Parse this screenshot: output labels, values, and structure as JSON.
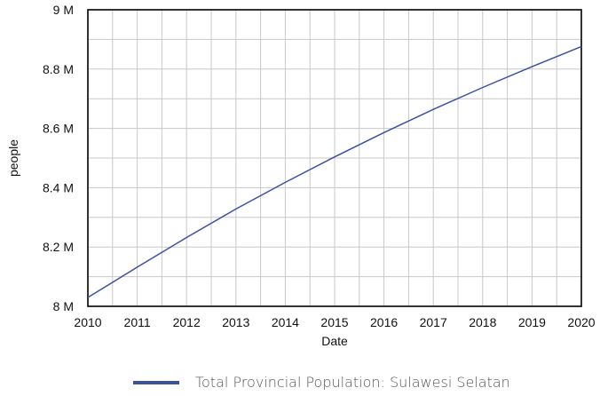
{
  "chart_data": {
    "type": "line",
    "title": "",
    "xlabel": "Date",
    "ylabel": "people",
    "x_ticks": [
      "2010",
      "2011",
      "2012",
      "2013",
      "2014",
      "2015",
      "2016",
      "2017",
      "2018",
      "2019",
      "2020"
    ],
    "y_ticks": [
      "8 M",
      "8.2 M",
      "8.4 M",
      "8.6 M",
      "8.8 M",
      "9 M"
    ],
    "xlim": [
      "2010-01",
      "2020-01"
    ],
    "ylim": [
      8000000,
      9000000
    ],
    "grid": true,
    "legend_position": "bottom",
    "series": [
      {
        "name": "Total Provincial Population: Sulawesi Selatan",
        "color": "#3a52a0",
        "x": [
          "2010-01",
          "2011-01",
          "2012-01",
          "2013-01",
          "2014-01",
          "2015-01",
          "2016-01",
          "2017-01",
          "2018-01",
          "2019-01",
          "2020-01"
        ],
        "y": [
          8030000,
          8132000,
          8232000,
          8328000,
          8418000,
          8504000,
          8586000,
          8664000,
          8738000,
          8808000,
          8876000
        ]
      }
    ]
  }
}
